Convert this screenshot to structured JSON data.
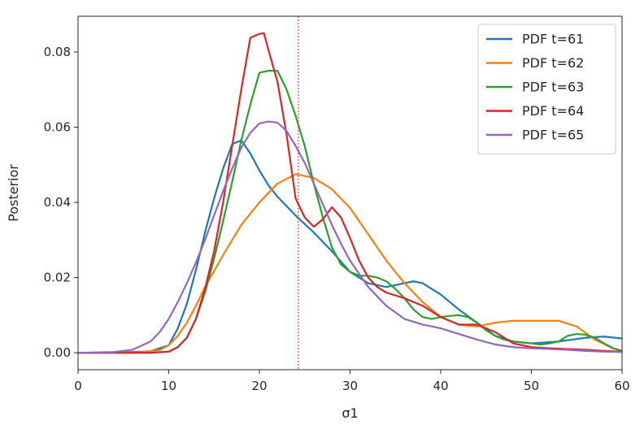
{
  "chart_data": {
    "type": "line",
    "title": "",
    "xlabel": "σ1",
    "ylabel": "Posterior",
    "xlim": [
      0,
      60
    ],
    "ylim": [
      -0.0045,
      0.0895
    ],
    "xticks": [
      0,
      10,
      20,
      30,
      40,
      50,
      60
    ],
    "xtick_labels": [
      "0",
      "10",
      "20",
      "30",
      "40",
      "50",
      "60"
    ],
    "yticks": [
      0.0,
      0.02,
      0.04,
      0.06,
      0.08
    ],
    "ytick_labels": [
      "0.00",
      "0.02",
      "0.04",
      "0.06",
      "0.08"
    ],
    "grid": false,
    "legend_position": "top-right",
    "vline": {
      "x": 24.3,
      "color": "#d62728",
      "style": "dotted"
    },
    "series": [
      {
        "name": "PDF t=61",
        "color": "#1f77b4",
        "points": [
          [
            0,
            0
          ],
          [
            4,
            0
          ],
          [
            8,
            0.0004
          ],
          [
            10,
            0.002
          ],
          [
            11,
            0.0065
          ],
          [
            12,
            0.013
          ],
          [
            13,
            0.022
          ],
          [
            14,
            0.032
          ],
          [
            15,
            0.041
          ],
          [
            16,
            0.049
          ],
          [
            17,
            0.0555
          ],
          [
            18,
            0.0565
          ],
          [
            19,
            0.053
          ],
          [
            20,
            0.0485
          ],
          [
            21,
            0.0445
          ],
          [
            22,
            0.0415
          ],
          [
            24,
            0.0365
          ],
          [
            26,
            0.032
          ],
          [
            28,
            0.027
          ],
          [
            30,
            0.0215
          ],
          [
            32,
            0.0185
          ],
          [
            34,
            0.0175
          ],
          [
            36,
            0.0185
          ],
          [
            37,
            0.019
          ],
          [
            38,
            0.0185
          ],
          [
            40,
            0.0155
          ],
          [
            42,
            0.0115
          ],
          [
            44,
            0.008
          ],
          [
            46,
            0.0045
          ],
          [
            48,
            0.003
          ],
          [
            50,
            0.0025
          ],
          [
            53,
            0.003
          ],
          [
            56,
            0.004
          ],
          [
            58,
            0.0043
          ],
          [
            60,
            0.0038
          ]
        ]
      },
      {
        "name": "PDF t=62",
        "color": "#ff7f0e",
        "points": [
          [
            0,
            0
          ],
          [
            6,
            0
          ],
          [
            9,
            0.0007
          ],
          [
            10,
            0.002
          ],
          [
            11,
            0.0045
          ],
          [
            12,
            0.008
          ],
          [
            13,
            0.0125
          ],
          [
            14,
            0.0175
          ],
          [
            16,
            0.026
          ],
          [
            18,
            0.034
          ],
          [
            20,
            0.04
          ],
          [
            22,
            0.045
          ],
          [
            24,
            0.0475
          ],
          [
            26,
            0.0465
          ],
          [
            28,
            0.0435
          ],
          [
            30,
            0.0385
          ],
          [
            32,
            0.0315
          ],
          [
            34,
            0.0245
          ],
          [
            36,
            0.0185
          ],
          [
            38,
            0.0135
          ],
          [
            40,
            0.0095
          ],
          [
            42,
            0.0075
          ],
          [
            44,
            0.007
          ],
          [
            46,
            0.008
          ],
          [
            48,
            0.0085
          ],
          [
            50,
            0.0085
          ],
          [
            53,
            0.0085
          ],
          [
            55,
            0.007
          ],
          [
            57,
            0.0035
          ],
          [
            59,
            0.0012
          ],
          [
            60,
            0.0005
          ]
        ]
      },
      {
        "name": "PDF t=63",
        "color": "#2ca02c",
        "points": [
          [
            0,
            0
          ],
          [
            8,
            0
          ],
          [
            10,
            0.0003
          ],
          [
            11,
            0.0015
          ],
          [
            12,
            0.004
          ],
          [
            13,
            0.009
          ],
          [
            14,
            0.016
          ],
          [
            15,
            0.025
          ],
          [
            16,
            0.035
          ],
          [
            17,
            0.0455
          ],
          [
            18,
            0.0565
          ],
          [
            19,
            0.066
          ],
          [
            20,
            0.0745
          ],
          [
            21,
            0.075
          ],
          [
            22,
            0.075
          ],
          [
            23,
            0.07
          ],
          [
            24,
            0.063
          ],
          [
            25,
            0.055
          ],
          [
            26,
            0.045
          ],
          [
            27,
            0.036
          ],
          [
            28,
            0.028
          ],
          [
            29,
            0.0235
          ],
          [
            30,
            0.0215
          ],
          [
            31,
            0.0205
          ],
          [
            32,
            0.0205
          ],
          [
            33,
            0.02
          ],
          [
            34,
            0.019
          ],
          [
            35,
            0.017
          ],
          [
            36,
            0.0145
          ],
          [
            37,
            0.0115
          ],
          [
            38,
            0.0095
          ],
          [
            39,
            0.009
          ],
          [
            40,
            0.0095
          ],
          [
            41,
            0.0098
          ],
          [
            42,
            0.01
          ],
          [
            43,
            0.0095
          ],
          [
            44,
            0.008
          ],
          [
            45,
            0.006
          ],
          [
            46,
            0.0045
          ],
          [
            47,
            0.0035
          ],
          [
            48,
            0.003
          ],
          [
            50,
            0.0025
          ],
          [
            51,
            0.0022
          ],
          [
            52,
            0.0025
          ],
          [
            53,
            0.003
          ],
          [
            54,
            0.0045
          ],
          [
            55,
            0.005
          ],
          [
            56,
            0.0048
          ],
          [
            57,
            0.004
          ],
          [
            58,
            0.0025
          ],
          [
            59,
            0.0012
          ],
          [
            60,
            0.0005
          ]
        ]
      },
      {
        "name": "PDF t=64",
        "color": "#d62728",
        "points": [
          [
            0,
            0
          ],
          [
            8,
            0
          ],
          [
            10,
            0.0003
          ],
          [
            11,
            0.0015
          ],
          [
            12,
            0.004
          ],
          [
            13,
            0.009
          ],
          [
            14,
            0.017
          ],
          [
            15,
            0.027
          ],
          [
            16,
            0.04
          ],
          [
            17,
            0.055
          ],
          [
            18,
            0.07
          ],
          [
            19,
            0.0838
          ],
          [
            20,
            0.0848
          ],
          [
            20.5,
            0.085
          ],
          [
            21,
            0.0805
          ],
          [
            22,
            0.072
          ],
          [
            23,
            0.058
          ],
          [
            24,
            0.041
          ],
          [
            25,
            0.036
          ],
          [
            26,
            0.0335
          ],
          [
            27,
            0.0355
          ],
          [
            28,
            0.0387
          ],
          [
            29,
            0.036
          ],
          [
            30,
            0.0305
          ],
          [
            31,
            0.0245
          ],
          [
            32,
            0.02
          ],
          [
            33,
            0.0175
          ],
          [
            34,
            0.016
          ],
          [
            36,
            0.0145
          ],
          [
            38,
            0.0125
          ],
          [
            40,
            0.0095
          ],
          [
            42,
            0.0075
          ],
          [
            44,
            0.0075
          ],
          [
            46,
            0.0055
          ],
          [
            48,
            0.0025
          ],
          [
            50,
            0.0015
          ],
          [
            52,
            0.0012
          ],
          [
            54,
            0.001
          ],
          [
            56,
            0.0008
          ],
          [
            58,
            0.0005
          ],
          [
            60,
            0.0003
          ]
        ]
      },
      {
        "name": "PDF t=65",
        "color": "#9467bd",
        "points": [
          [
            0,
            0
          ],
          [
            4,
            0.0002
          ],
          [
            6,
            0.0008
          ],
          [
            8,
            0.003
          ],
          [
            9,
            0.0055
          ],
          [
            10,
            0.009
          ],
          [
            11,
            0.0135
          ],
          [
            12,
            0.0185
          ],
          [
            13,
            0.024
          ],
          [
            14,
            0.03
          ],
          [
            15,
            0.0365
          ],
          [
            16,
            0.043
          ],
          [
            17,
            0.049
          ],
          [
            18,
            0.0545
          ],
          [
            19,
            0.0585
          ],
          [
            20,
            0.061
          ],
          [
            21,
            0.0615
          ],
          [
            22,
            0.0612
          ],
          [
            23,
            0.059
          ],
          [
            24,
            0.055
          ],
          [
            25,
            0.0505
          ],
          [
            26,
            0.045
          ],
          [
            27,
            0.0395
          ],
          [
            28,
            0.034
          ],
          [
            29,
            0.029
          ],
          [
            30,
            0.0245
          ],
          [
            32,
            0.0175
          ],
          [
            34,
            0.0125
          ],
          [
            36,
            0.009
          ],
          [
            38,
            0.0075
          ],
          [
            40,
            0.0065
          ],
          [
            42,
            0.005
          ],
          [
            44,
            0.0035
          ],
          [
            46,
            0.0022
          ],
          [
            48,
            0.0015
          ],
          [
            50,
            0.0012
          ],
          [
            52,
            0.001
          ],
          [
            54,
            0.0008
          ],
          [
            56,
            0.0005
          ],
          [
            58,
            0.0003
          ],
          [
            60,
            0.0002
          ]
        ]
      }
    ]
  }
}
